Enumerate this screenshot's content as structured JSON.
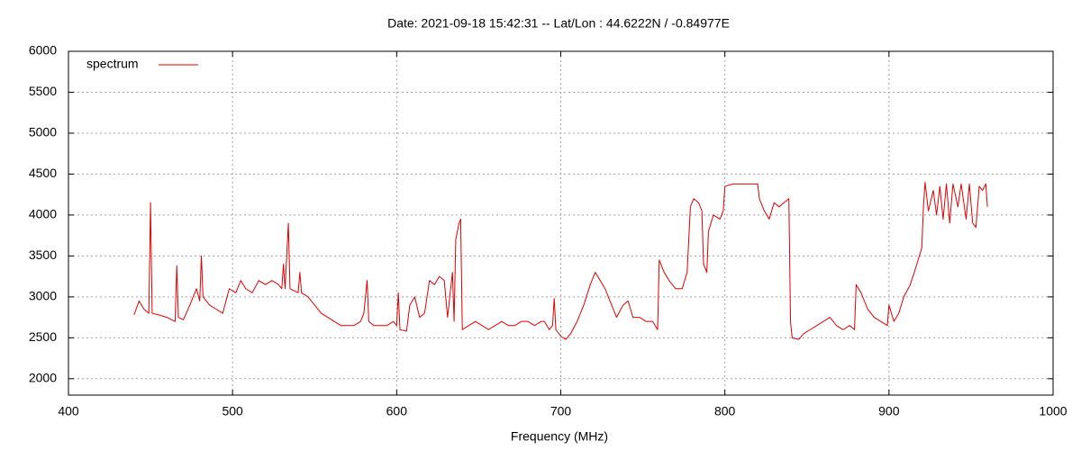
{
  "chart_data": {
    "type": "line",
    "title": "Date: 2021-09-18 15:42:31  --  Lat/Lon : 44.6222N / -0.84977E",
    "x_label": "Frequency (MHz)",
    "xlim": [
      400,
      1000
    ],
    "xticks": [
      400,
      500,
      600,
      700,
      800,
      900,
      1000
    ],
    "ylim": [
      1800,
      6000
    ],
    "yticks": [
      2000,
      2500,
      3000,
      3500,
      4000,
      4500,
      5000,
      5500,
      6000
    ],
    "grid": true,
    "legend": "top-left",
    "x": [
      440,
      443,
      446,
      449,
      450,
      451,
      455,
      460,
      465,
      466,
      467,
      470,
      474,
      478,
      480,
      481,
      482,
      486,
      490,
      494,
      498,
      502,
      505,
      508,
      512,
      516,
      520,
      524,
      528,
      530,
      531,
      532,
      534,
      535,
      540,
      541,
      542,
      546,
      550,
      554,
      558,
      562,
      566,
      570,
      574,
      578,
      580,
      582,
      583,
      586,
      590,
      594,
      598,
      600,
      601,
      602,
      606,
      608,
      611,
      614,
      617,
      620,
      623,
      626,
      629,
      631,
      634,
      635,
      636,
      638,
      639,
      640,
      644,
      648,
      652,
      656,
      660,
      664,
      668,
      672,
      676,
      680,
      684,
      688,
      690,
      693,
      695,
      696,
      697,
      700,
      703,
      706,
      710,
      714,
      718,
      721,
      724,
      727,
      730,
      734,
      738,
      741,
      744,
      748,
      752,
      756,
      759,
      760,
      763,
      766,
      770,
      774,
      777,
      779,
      781,
      784,
      786,
      787,
      789,
      790,
      793,
      797,
      799,
      800,
      805,
      810,
      815,
      820,
      821,
      824,
      827,
      830,
      833,
      836,
      839,
      840,
      841,
      845,
      848,
      852,
      856,
      860,
      864,
      868,
      872,
      876,
      879,
      880,
      883,
      887,
      891,
      895,
      899,
      900,
      903,
      906,
      909,
      913,
      917,
      920,
      921,
      922,
      924,
      927,
      929,
      931,
      933,
      935,
      937,
      939,
      942,
      944,
      947,
      949,
      951,
      953,
      955,
      957,
      959,
      960
    ],
    "series": [
      {
        "name": "spectrum",
        "color": "#e00000",
        "values": [
          2780,
          2950,
          2850,
          2800,
          4150,
          2800,
          2780,
          2750,
          2700,
          3380,
          2750,
          2720,
          2900,
          3100,
          2950,
          3500,
          3000,
          2900,
          2850,
          2800,
          3100,
          3050,
          3200,
          3100,
          3050,
          3200,
          3150,
          3200,
          3150,
          3100,
          3400,
          3100,
          3900,
          3100,
          3050,
          3300,
          3050,
          3000,
          2900,
          2800,
          2750,
          2700,
          2650,
          2650,
          2650,
          2700,
          2800,
          3200,
          2700,
          2650,
          2650,
          2650,
          2700,
          2650,
          3050,
          2600,
          2580,
          2900,
          3000,
          2750,
          2800,
          3200,
          3150,
          3250,
          3200,
          2750,
          3300,
          2700,
          3700,
          3900,
          3950,
          2600,
          2650,
          2700,
          2650,
          2600,
          2650,
          2700,
          2650,
          2650,
          2700,
          2700,
          2650,
          2700,
          2700,
          2600,
          2650,
          2980,
          2600,
          2520,
          2480,
          2550,
          2700,
          2900,
          3150,
          3300,
          3200,
          3100,
          2950,
          2750,
          2900,
          2950,
          2750,
          2750,
          2700,
          2700,
          2600,
          3450,
          3300,
          3200,
          3100,
          3100,
          3300,
          4100,
          4200,
          4150,
          4050,
          3400,
          3300,
          3800,
          4000,
          3950,
          4050,
          4350,
          4380,
          4380,
          4380,
          4380,
          4200,
          4050,
          3950,
          4150,
          4100,
          4150,
          4200,
          2700,
          2500,
          2480,
          2550,
          2600,
          2650,
          2700,
          2750,
          2650,
          2600,
          2650,
          2600,
          3150,
          3050,
          2850,
          2750,
          2700,
          2650,
          2900,
          2700,
          2800,
          3000,
          3150,
          3400,
          3600,
          4100,
          4400,
          4050,
          4300,
          4000,
          4350,
          3950,
          4380,
          3900,
          4380,
          4100,
          4380,
          3950,
          4380,
          3900,
          3850,
          4350,
          4300,
          4380,
          4100
        ]
      }
    ]
  }
}
